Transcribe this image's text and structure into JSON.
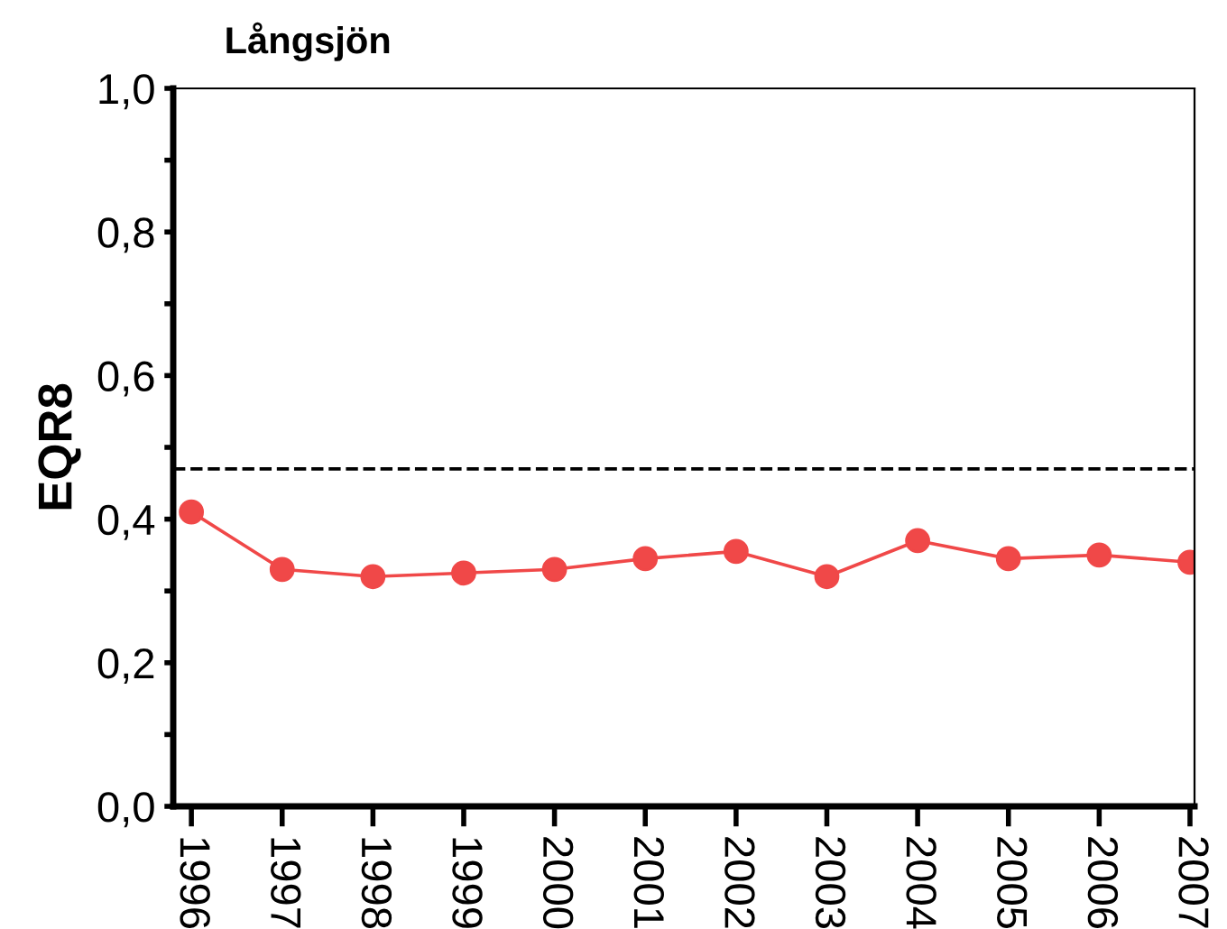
{
  "chart_data": {
    "type": "line",
    "title": "Långsjön",
    "ylabel": "EQR8",
    "categories": [
      "1996",
      "1997",
      "1998",
      "1999",
      "2000",
      "2001",
      "2002",
      "2003",
      "2004",
      "2005",
      "2006",
      "2007"
    ],
    "series": [
      {
        "color": "#f04848",
        "values": [
          0.41,
          0.33,
          0.32,
          0.325,
          0.33,
          0.345,
          0.355,
          0.32,
          0.37,
          0.345,
          0.35,
          0.34
        ]
      }
    ],
    "ylim": [
      0,
      1
    ],
    "yticks": [
      {
        "value": 0,
        "label": "0,0"
      },
      {
        "value": 0.1,
        "label": null
      },
      {
        "value": 0.2,
        "label": "0,2"
      },
      {
        "value": 0.3,
        "label": null
      },
      {
        "value": 0.4,
        "label": "0,4"
      },
      {
        "value": 0.5,
        "label": null
      },
      {
        "value": 0.6,
        "label": "0,6"
      },
      {
        "value": 0.7,
        "label": null
      },
      {
        "value": 0.8,
        "label": "0,8"
      },
      {
        "value": 0.9,
        "label": null
      },
      {
        "value": 1,
        "label": "1,0"
      }
    ],
    "ref_lines": [
      {
        "axis": "y",
        "value": 0.47,
        "color": "#000000",
        "line_style": "dashed"
      }
    ],
    "marker": "circle",
    "line_style": "solid",
    "grid": false,
    "legend": false
  }
}
